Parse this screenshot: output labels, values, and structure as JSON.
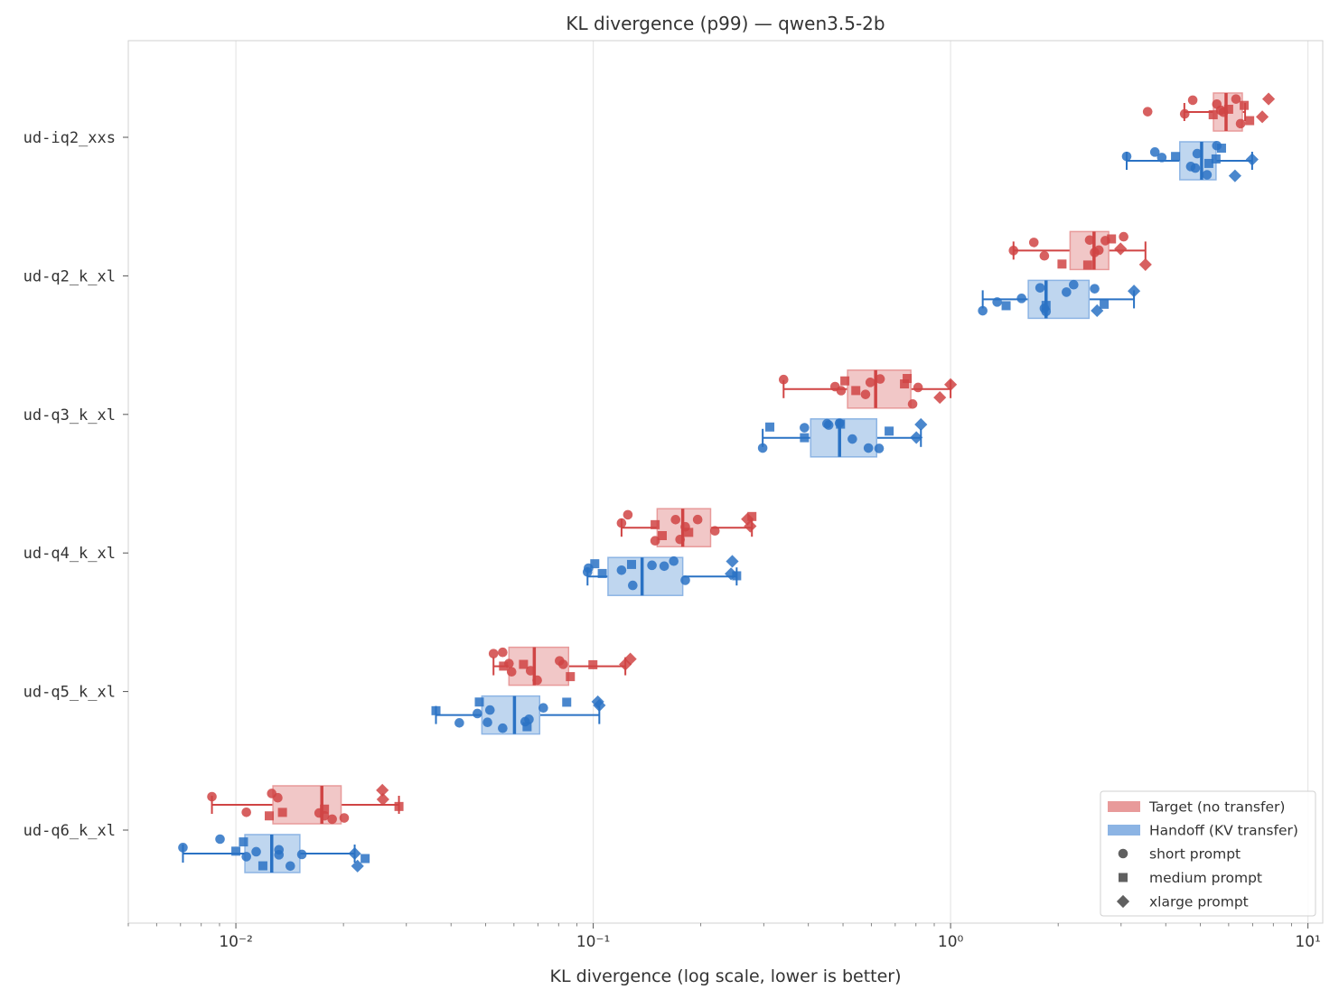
{
  "chart_data": {
    "type": "box",
    "title": "KL divergence (p99) — qwen3.5-2b",
    "xlabel": "KL divergence (log scale, lower is better)",
    "ylabel": "",
    "x_scale": "log",
    "xlim": [
      0.005,
      11
    ],
    "x_ticks": [
      0.01,
      0.1,
      1,
      10
    ],
    "x_tick_labels": [
      "10⁻²",
      "10⁻¹",
      "10⁰",
      "10¹"
    ],
    "grid": "vertical major gridlines",
    "legend_placement": "lower-right",
    "categories": [
      "ud-iq2_xxs",
      "ud-q2_k_xl",
      "ud-q3_k_xl",
      "ud-q4_k_xl",
      "ud-q5_k_xl",
      "ud-q6_k_xl"
    ],
    "series": [
      {
        "name": "Target (no transfer)",
        "color": "#d04444",
        "box_fill": "#f0c4c4",
        "legend_color": "#e89a9a",
        "boxes": [
          {
            "whislo": 4.51,
            "q1": 5.44,
            "med": 5.9,
            "q3": 6.55,
            "whishi": 6.67
          },
          {
            "whislo": 1.5,
            "q1": 2.16,
            "med": 2.52,
            "q3": 2.77,
            "whishi": 3.51
          },
          {
            "whislo": 0.341,
            "q1": 0.515,
            "med": 0.617,
            "q3": 0.774,
            "whishi": 1.0
          },
          {
            "whislo": 0.12,
            "q1": 0.151,
            "med": 0.178,
            "q3": 0.213,
            "whishi": 0.278
          },
          {
            "whislo": 0.0526,
            "q1": 0.0581,
            "med": 0.0684,
            "q3": 0.0853,
            "whishi": 0.123
          },
          {
            "whislo": 0.00857,
            "q1": 0.0127,
            "med": 0.0174,
            "q3": 0.0197,
            "whishi": 0.0286
          }
        ],
        "points": [
          {
            "short": [
              3.56,
              4.52,
              4.76,
              5.56,
              5.7,
              5.8,
              6.29,
              6.48
            ],
            "medium": [
              5.43,
              6.0,
              6.63,
              6.87
            ],
            "xlarge": [
              7.45,
              7.76
            ]
          },
          {
            "short": [
              1.5,
              1.71,
              1.83,
              2.45,
              2.53,
              2.6,
              2.71,
              3.05
            ],
            "medium": [
              2.05,
              2.42,
              2.82
            ],
            "xlarge": [
              2.99,
              3.51
            ]
          },
          {
            "short": [
              0.341,
              0.475,
              0.494,
              0.578,
              0.596,
              0.635,
              0.783,
              0.811
            ],
            "medium": [
              0.506,
              0.543,
              0.743,
              0.756
            ],
            "xlarge": [
              0.933,
              1.0
            ]
          },
          {
            "short": [
              0.12,
              0.125,
              0.149,
              0.17,
              0.175,
              0.181,
              0.196,
              0.219
            ],
            "medium": [
              0.149,
              0.156,
              0.185,
              0.278
            ],
            "xlarge": [
              0.27,
              0.275
            ]
          },
          {
            "short": [
              0.0526,
              0.0558,
              0.0581,
              0.0591,
              0.0668,
              0.0697,
              0.0805,
              0.0824
            ],
            "medium": [
              0.0561,
              0.0638,
              0.0863,
              0.0998
            ],
            "xlarge": [
              0.123,
              0.127
            ]
          },
          {
            "short": [
              0.00857,
              0.0107,
              0.0126,
              0.0131,
              0.0171,
              0.0177,
              0.0186,
              0.0201
            ],
            "medium": [
              0.0124,
              0.0135,
              0.0177,
              0.0286
            ],
            "xlarge": [
              0.0257,
              0.0258
            ]
          }
        ]
      },
      {
        "name": "Handoff (KV transfer)",
        "color": "#2a72c4",
        "box_fill": "#bcd4ee",
        "legend_color": "#8cb4e4",
        "boxes": [
          {
            "whislo": 3.11,
            "q1": 4.38,
            "med": 5.04,
            "q3": 5.53,
            "whishi": 6.98
          },
          {
            "whislo": 1.23,
            "q1": 1.65,
            "med": 1.85,
            "q3": 2.44,
            "whishi": 3.26
          },
          {
            "whislo": 0.298,
            "q1": 0.406,
            "med": 0.489,
            "q3": 0.621,
            "whishi": 0.826
          },
          {
            "whislo": 0.0964,
            "q1": 0.11,
            "med": 0.137,
            "q3": 0.178,
            "whishi": 0.252
          },
          {
            "whislo": 0.0363,
            "q1": 0.0488,
            "med": 0.0602,
            "q3": 0.0708,
            "whishi": 0.104
          },
          {
            "whislo": 0.00711,
            "q1": 0.0106,
            "med": 0.0126,
            "q3": 0.0151,
            "whishi": 0.0215
          }
        ],
        "points": [
          {
            "short": [
              3.11,
              3.73,
              3.9,
              4.7,
              4.84,
              4.9,
              5.22,
              5.56
            ],
            "medium": [
              4.26,
              5.28,
              5.53,
              5.73
            ],
            "xlarge": [
              6.25,
              6.98
            ]
          },
          {
            "short": [
              1.23,
              1.35,
              1.58,
              1.78,
              1.83,
              1.85,
              2.11,
              2.21,
              2.53
            ],
            "medium": [
              1.43,
              1.85,
              2.69
            ],
            "xlarge": [
              2.57,
              3.26
            ]
          },
          {
            "short": [
              0.298,
              0.39,
              0.451,
              0.456,
              0.489,
              0.531,
              0.589,
              0.631
            ],
            "medium": [
              0.312,
              0.39,
              0.492,
              0.673
            ],
            "xlarge": [
              0.802,
              0.826
            ]
          },
          {
            "short": [
              0.0964,
              0.097,
              0.12,
              0.129,
              0.146,
              0.158,
              0.168,
              0.181
            ],
            "medium": [
              0.101,
              0.106,
              0.128,
              0.252
            ],
            "xlarge": [
              0.243,
              0.245
            ]
          },
          {
            "short": [
              0.0422,
              0.0474,
              0.0506,
              0.0514,
              0.0558,
              0.0645,
              0.0661,
              0.0725
            ],
            "medium": [
              0.0363,
              0.048,
              0.0653,
              0.0843
            ],
            "xlarge": [
              0.103,
              0.104
            ]
          },
          {
            "short": [
              0.00711,
              0.00903,
              0.0107,
              0.0114,
              0.0132,
              0.0132,
              0.0142,
              0.0153
            ],
            "medium": [
              0.01,
              0.0105,
              0.0119,
              0.023
            ],
            "xlarge": [
              0.0215,
              0.0219
            ]
          }
        ]
      }
    ],
    "marker_legend": [
      {
        "key": "short",
        "label": "short prompt",
        "shape": "circle"
      },
      {
        "key": "medium",
        "label": "medium prompt",
        "shape": "square"
      },
      {
        "key": "xlarge",
        "label": "xlarge prompt",
        "shape": "diamond"
      }
    ],
    "marker_legend_color": "#444444"
  }
}
